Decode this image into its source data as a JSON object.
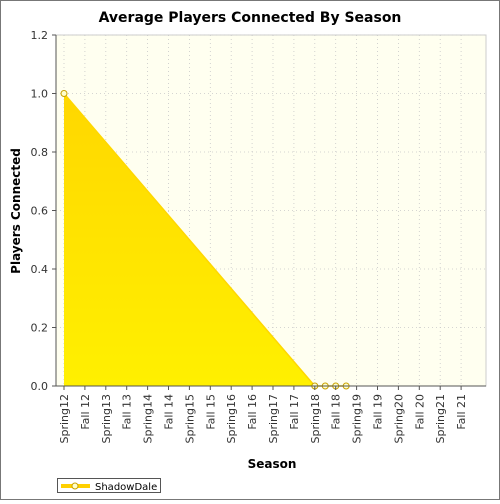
{
  "chart_data": {
    "type": "area",
    "title": "Average Players Connected By Season",
    "xlabel": "Season",
    "ylabel": "Players Connected",
    "categories": [
      "Spring 12",
      "Fall 12",
      "Spring 13",
      "Fall 13",
      "Spring 14",
      "Fall 14",
      "Spring 15",
      "Fall 15",
      "Spring 16",
      "Fall 16",
      "Spring 17",
      "Fall 17",
      "Spring 18",
      "Fall 18",
      "Spring 19",
      "Fall 19",
      "Spring 20",
      "Fall 20",
      "Spring 21",
      "Fall 21"
    ],
    "x_tick_labels": [
      "Spring12",
      "Fall 12",
      "Spring13",
      "Fall 13",
      "Spring14",
      "Fall 14",
      "Spring15",
      "Fall 15",
      "Spring16",
      "Fall 16",
      "Spring17",
      "Fall 17",
      "Spring18",
      "Fall 18",
      "Spring19",
      "Fall 19",
      "Spring20",
      "Fall 20",
      "Spring21",
      "Fall 21"
    ],
    "series": [
      {
        "name": "ShadowDale",
        "x": [
          0,
          12,
          12.5,
          13,
          13.5
        ],
        "values": [
          1.0,
          0.0,
          0.0,
          0.0,
          0.0
        ],
        "color": "#ffe100"
      }
    ],
    "ylim": [
      0,
      1.2
    ],
    "y_ticks": [
      0.0,
      0.2,
      0.4,
      0.6,
      0.8,
      1.0,
      1.2
    ],
    "y_tick_labels": [
      "0.0",
      "0.2",
      "0.4",
      "0.6",
      "0.8",
      "1.0",
      "1.2"
    ],
    "grid": true,
    "legend": "bottom-left",
    "colors": {
      "plot_background": "#fffff0",
      "area_top": "#ffd700",
      "area_bottom": "#fff000",
      "marker_fill": "#ffffcc",
      "marker_stroke": "#c8a000"
    }
  }
}
